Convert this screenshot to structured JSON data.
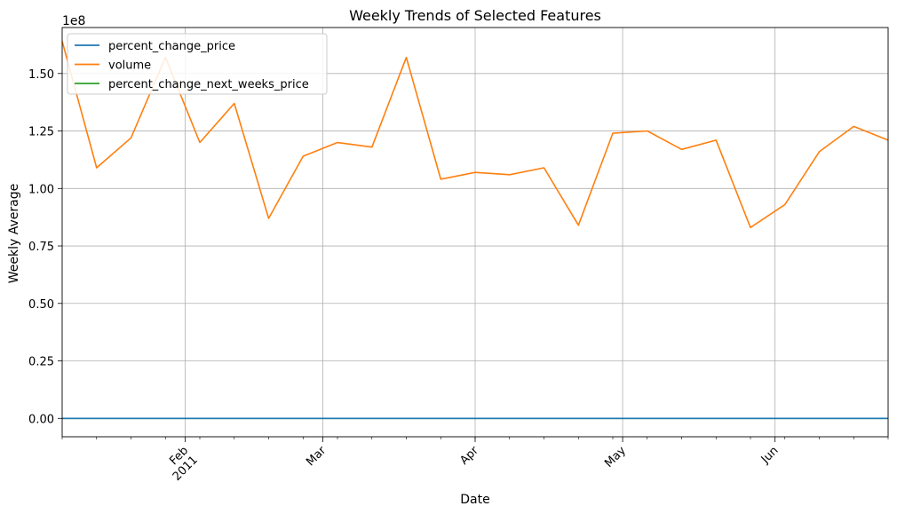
{
  "chart_data": {
    "type": "line",
    "title": "Weekly Trends of Selected Features",
    "xlabel": "Date",
    "ylabel": "Weekly Average",
    "y_offset_label": "1e8",
    "ylim": [
      -0.08,
      1.7
    ],
    "y_ticks": [
      0.0,
      0.25,
      0.5,
      0.75,
      1.0,
      1.25,
      1.5
    ],
    "y_tick_labels": [
      "0.00",
      "0.25",
      "0.50",
      "0.75",
      "1.00",
      "1.25",
      "1.50"
    ],
    "xlim": [
      "2011-01-07",
      "2011-06-24"
    ],
    "x_major_ticks": [
      {
        "date": "2011-02-01",
        "label": "Feb",
        "sublabel": "2011"
      },
      {
        "date": "2011-03-01",
        "label": "Mar",
        "sublabel": ""
      },
      {
        "date": "2011-04-01",
        "label": "Apr",
        "sublabel": ""
      },
      {
        "date": "2011-05-01",
        "label": "May",
        "sublabel": ""
      },
      {
        "date": "2011-06-01",
        "label": "Jun",
        "sublabel": ""
      }
    ],
    "x_minor_ticks": [
      "2011-01-07",
      "2011-01-14",
      "2011-01-21",
      "2011-01-28",
      "2011-02-04",
      "2011-02-11",
      "2011-02-18",
      "2011-02-25",
      "2011-03-04",
      "2011-03-11",
      "2011-03-18",
      "2011-03-25",
      "2011-04-01",
      "2011-04-08",
      "2011-04-15",
      "2011-04-22",
      "2011-04-29",
      "2011-05-06",
      "2011-05-13",
      "2011-05-20",
      "2011-05-27",
      "2011-06-03",
      "2011-06-10",
      "2011-06-17",
      "2011-06-24"
    ],
    "grid": true,
    "legend_position": "top-left",
    "x": [
      "2011-01-07",
      "2011-01-14",
      "2011-01-21",
      "2011-01-28",
      "2011-02-04",
      "2011-02-11",
      "2011-02-18",
      "2011-02-25",
      "2011-03-04",
      "2011-03-11",
      "2011-03-18",
      "2011-03-25",
      "2011-04-01",
      "2011-04-08",
      "2011-04-15",
      "2011-04-22",
      "2011-04-29",
      "2011-05-06",
      "2011-05-13",
      "2011-05-20",
      "2011-05-27",
      "2011-06-03",
      "2011-06-10",
      "2011-06-17",
      "2011-06-24"
    ],
    "series": [
      {
        "name": "percent_change_price",
        "color": "#1f77b4",
        "values": [
          0,
          0,
          0,
          0,
          0,
          0,
          0,
          0,
          0,
          0,
          0,
          0,
          0,
          0,
          0,
          0,
          0,
          0,
          0,
          0,
          0,
          0,
          0,
          0,
          0
        ]
      },
      {
        "name": "volume",
        "color": "#ff7f0e",
        "values": [
          1.64,
          1.09,
          1.22,
          1.57,
          1.2,
          1.37,
          0.87,
          1.14,
          1.2,
          1.18,
          1.57,
          1.04,
          1.07,
          1.06,
          1.09,
          0.84,
          1.24,
          1.25,
          1.17,
          1.21,
          0.83,
          0.93,
          1.16,
          1.27,
          1.21
        ]
      },
      {
        "name": "percent_change_next_weeks_price",
        "color": "#2ca02c",
        "values": [
          0,
          0,
          0,
          0,
          0,
          0,
          0,
          0,
          0,
          0,
          0,
          0,
          0,
          0,
          0,
          0,
          0,
          0,
          0,
          0,
          0,
          0,
          0,
          0,
          0
        ]
      }
    ]
  }
}
